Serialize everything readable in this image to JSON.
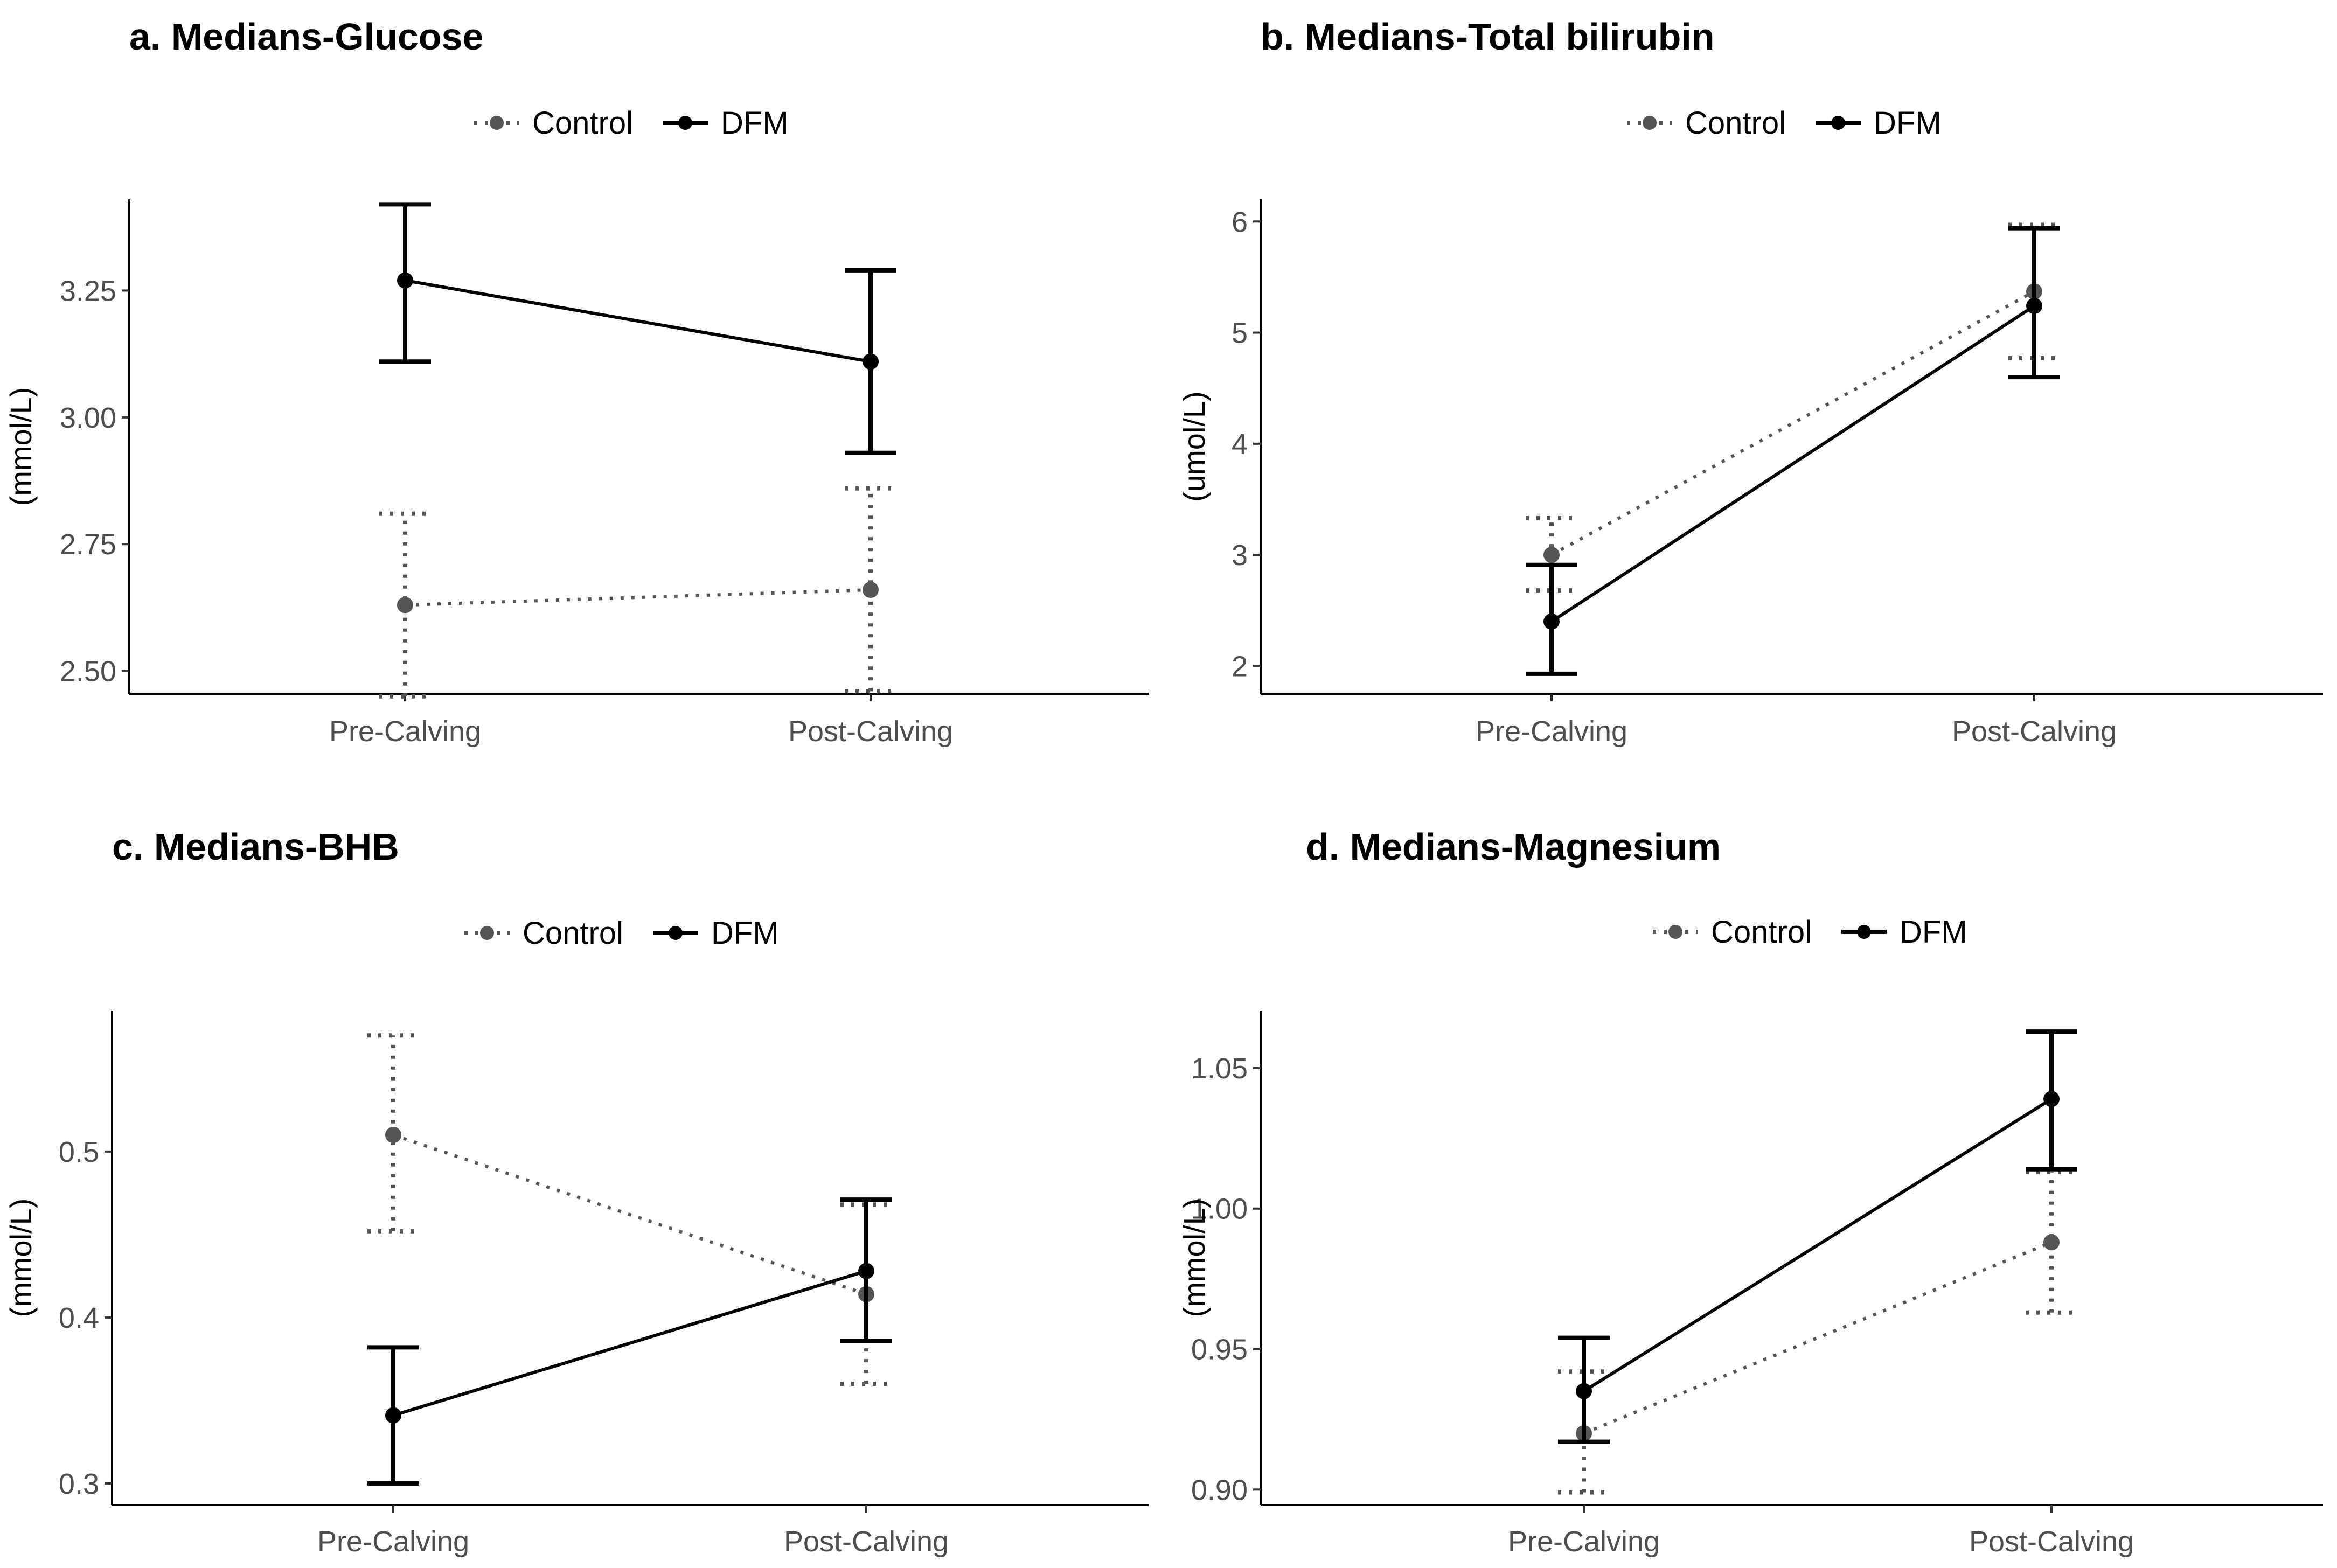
{
  "colors": {
    "control": "#555555",
    "dfm": "#000000",
    "axis": "#000000",
    "tick_text": "#4d4d4d"
  },
  "chart_data": [
    {
      "type": "line",
      "title": "a. Medians-Glucose",
      "legend": [
        {
          "name": "Control",
          "style": "dotted",
          "icon": "dotted-line-circle-marker-icon"
        },
        {
          "name": "DFM",
          "style": "solid",
          "icon": "solid-line-circle-marker-icon"
        }
      ],
      "legend_position": "top",
      "categories": [
        "Pre-Calving",
        "Post-Calving"
      ],
      "xlabel": "",
      "ylabel": "(mmol/L)",
      "ylim": [
        2.455,
        3.43
      ],
      "yticks": [
        2.5,
        2.75,
        3.0,
        3.25
      ],
      "ytick_labels": [
        "2.50",
        "2.75",
        "3.00",
        "3.25"
      ],
      "series": [
        {
          "name": "Control",
          "values": [
            2.63,
            2.66
          ],
          "lower": [
            2.45,
            2.46
          ],
          "upper": [
            2.81,
            2.86
          ]
        },
        {
          "name": "DFM",
          "values": [
            3.27,
            3.11
          ],
          "lower": [
            3.11,
            2.93
          ],
          "upper": [
            3.42,
            3.29
          ]
        }
      ]
    },
    {
      "type": "line",
      "title": "b. Medians-Total bilirubin",
      "legend": [
        {
          "name": "Control",
          "style": "dotted",
          "icon": "dotted-line-circle-marker-icon"
        },
        {
          "name": "DFM",
          "style": "solid",
          "icon": "solid-line-circle-marker-icon"
        }
      ],
      "legend_position": "top",
      "categories": [
        "Pre-Calving",
        "Post-Calving"
      ],
      "xlabel": "",
      "ylabel": "(umol/L)",
      "ylim": [
        1.75,
        6.2
      ],
      "yticks": [
        2,
        3,
        4,
        5,
        6
      ],
      "ytick_labels": [
        "2",
        "3",
        "4",
        "5",
        "6"
      ],
      "series": [
        {
          "name": "Control",
          "values": [
            3.0,
            5.37
          ],
          "lower": [
            2.68,
            4.77
          ],
          "upper": [
            3.33,
            5.97
          ]
        },
        {
          "name": "DFM",
          "values": [
            2.4,
            5.24
          ],
          "lower": [
            1.93,
            4.6
          ],
          "upper": [
            2.91,
            5.94
          ]
        }
      ]
    },
    {
      "type": "line",
      "title": "c. Medians-BHB",
      "legend": [
        {
          "name": "Control",
          "style": "dotted",
          "icon": "dotted-line-circle-marker-icon"
        },
        {
          "name": "DFM",
          "style": "solid",
          "icon": "solid-line-circle-marker-icon"
        }
      ],
      "legend_position": "top",
      "categories": [
        "Pre-Calving",
        "Post-Calving"
      ],
      "xlabel": "",
      "ylabel": "(mmol/L)",
      "ylim": [
        0.287,
        0.585
      ],
      "yticks": [
        0.3,
        0.4,
        0.5
      ],
      "ytick_labels": [
        "0.3",
        "0.4",
        "0.5"
      ],
      "series": [
        {
          "name": "Control",
          "values": [
            0.51,
            0.414
          ],
          "lower": [
            0.452,
            0.36
          ],
          "upper": [
            0.57,
            0.468
          ]
        },
        {
          "name": "DFM",
          "values": [
            0.341,
            0.428
          ],
          "lower": [
            0.3,
            0.386
          ],
          "upper": [
            0.382,
            0.471
          ]
        }
      ]
    },
    {
      "type": "line",
      "title": "d. Medians-Magnesium",
      "legend": [
        {
          "name": "Control",
          "style": "dotted",
          "icon": "dotted-line-circle-marker-icon"
        },
        {
          "name": "DFM",
          "style": "solid",
          "icon": "solid-line-circle-marker-icon"
        }
      ],
      "legend_position": "top",
      "categories": [
        "Pre-Calving",
        "Post-Calving"
      ],
      "xlabel": "",
      "ylabel": "(mmol/L)",
      "ylim": [
        0.8945,
        1.0705
      ],
      "yticks": [
        0.9,
        0.95,
        1.0,
        1.05
      ],
      "ytick_labels": [
        "0.90",
        "0.95",
        "1.00",
        "1.05"
      ],
      "series": [
        {
          "name": "Control",
          "values": [
            0.92,
            0.988
          ],
          "lower": [
            0.899,
            0.963
          ],
          "upper": [
            0.942,
            1.013
          ]
        },
        {
          "name": "DFM",
          "values": [
            0.935,
            1.039
          ],
          "lower": [
            0.917,
            1.014
          ],
          "upper": [
            0.954,
            1.063
          ]
        }
      ]
    }
  ]
}
